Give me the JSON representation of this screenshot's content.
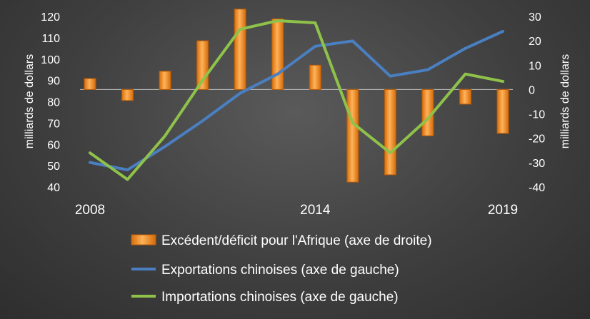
{
  "chart_data": {
    "type": "bar+line",
    "title": "",
    "x": [
      2008,
      2009,
      2010,
      2011,
      2012,
      2013,
      2014,
      2015,
      2016,
      2017,
      2018,
      2019
    ],
    "x_tick_labels": [
      "2008",
      "2014",
      "2019"
    ],
    "left_axis": {
      "label": "milliards de dollars",
      "ylim": [
        40,
        120
      ],
      "ticks": [
        "40",
        "50",
        "60",
        "70",
        "80",
        "90",
        "100",
        "110",
        "120"
      ]
    },
    "right_axis": {
      "label": "milliards de dollars",
      "ylim": [
        -40,
        30
      ],
      "ticks": [
        "-40",
        "-30",
        "-20",
        "-10",
        "0",
        "10",
        "20",
        "30"
      ]
    },
    "series": [
      {
        "name": "Excédent/déficit pour l'Afrique (axe de droite)",
        "kind": "bar",
        "axis": "right",
        "color": "#f28c1e",
        "values": [
          4.5,
          -4.5,
          7.5,
          20,
          33,
          29,
          10,
          -38,
          -35,
          -19,
          -6,
          -18
        ]
      },
      {
        "name": "Exportations chinoises  (axe de gauche)",
        "kind": "line",
        "axis": "left",
        "color": "#4a7fc1",
        "values": [
          51.5,
          48,
          59,
          71,
          84,
          93,
          106,
          108.5,
          92,
          95,
          105,
          113
        ]
      },
      {
        "name": "Importations chinoises (axe de gauche)",
        "kind": "line",
        "axis": "left",
        "color": "#8fc24a",
        "values": [
          56,
          43.5,
          64,
          90,
          114,
          118,
          117,
          70,
          56,
          72,
          93,
          89.5
        ]
      }
    ],
    "legend": {
      "placement": "bottom"
    },
    "grid": false
  }
}
